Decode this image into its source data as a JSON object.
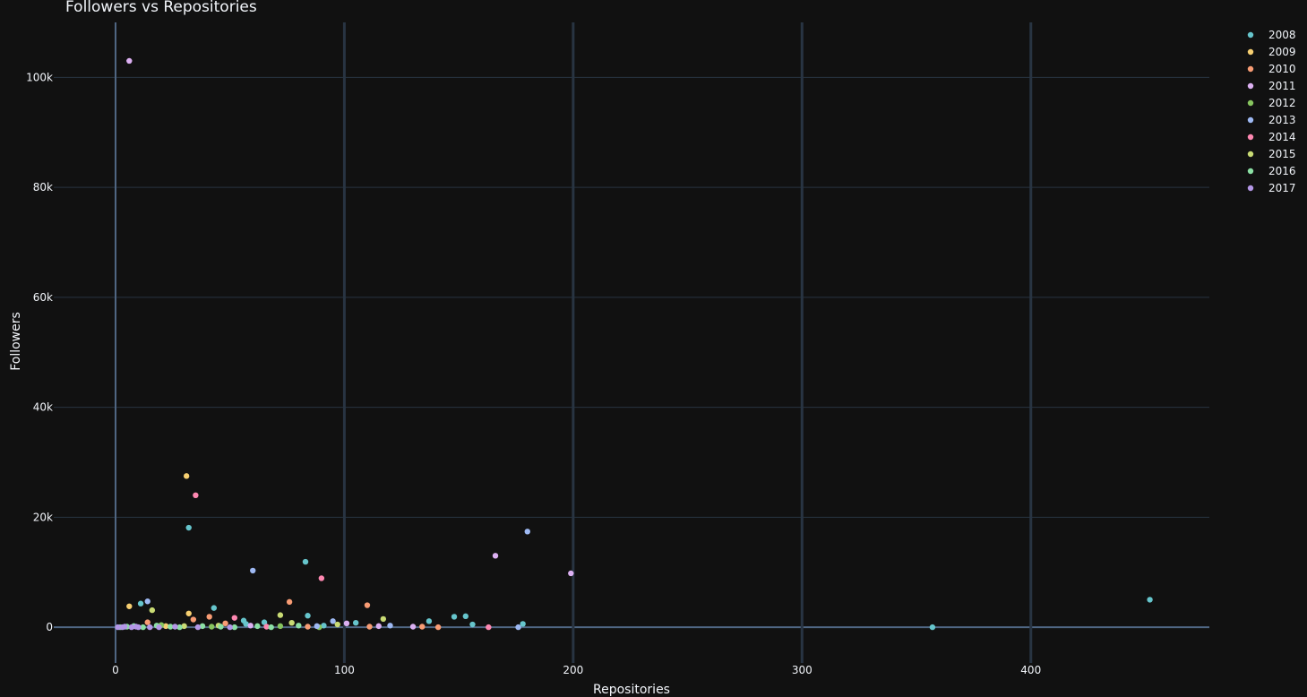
{
  "chart_data": {
    "type": "scatter",
    "title": "Followers vs Repositories",
    "xlabel": "Repositories",
    "ylabel": "Followers",
    "xlim": [
      -27,
      478
    ],
    "ylim": [
      -6500,
      110000
    ],
    "x_ticks": [
      0,
      100,
      200,
      300,
      400
    ],
    "x_tick_labels": [
      "0",
      "100",
      "200",
      "300",
      "400"
    ],
    "y_ticks": [
      0,
      20000,
      40000,
      60000,
      80000,
      100000
    ],
    "y_tick_labels": [
      "0",
      "20k",
      "40k",
      "60k",
      "80k",
      "100k"
    ],
    "grid": true,
    "legend_position": "top-right",
    "background": "#111111",
    "grid_color": "#283442",
    "series": [
      {
        "name": "2008",
        "color": "#66c5cc",
        "points": [
          [
            11,
            4300
          ],
          [
            32,
            18100
          ],
          [
            43,
            3500
          ],
          [
            56,
            1200
          ],
          [
            57,
            600
          ],
          [
            65,
            900
          ],
          [
            83,
            11900
          ],
          [
            84,
            2100
          ],
          [
            91,
            300
          ],
          [
            105,
            800
          ],
          [
            137,
            1100
          ],
          [
            148,
            1900
          ],
          [
            153,
            2000
          ],
          [
            156,
            500
          ],
          [
            178,
            600
          ],
          [
            357,
            0
          ],
          [
            452,
            5000
          ]
        ]
      },
      {
        "name": "2009",
        "color": "#f6cf71",
        "points": [
          [
            6,
            3800
          ],
          [
            31,
            27500
          ],
          [
            32,
            2500
          ],
          [
            22,
            200
          ]
        ]
      },
      {
        "name": "2010",
        "color": "#f89c74",
        "points": [
          [
            14,
            900
          ],
          [
            34,
            1400
          ],
          [
            41,
            1900
          ],
          [
            48,
            700
          ],
          [
            76,
            4600
          ],
          [
            84,
            100
          ],
          [
            110,
            4000
          ],
          [
            111,
            100
          ],
          [
            134,
            100
          ],
          [
            141,
            0
          ]
        ]
      },
      {
        "name": "2011",
        "color": "#dcb0f2",
        "points": [
          [
            6,
            103000
          ],
          [
            59,
            300
          ],
          [
            101,
            700
          ],
          [
            115,
            200
          ],
          [
            130,
            100
          ],
          [
            166,
            13000
          ],
          [
            199,
            9800
          ]
        ]
      },
      {
        "name": "2012",
        "color": "#87c55f",
        "points": [
          [
            20,
            400
          ],
          [
            42,
            100
          ],
          [
            72,
            200
          ],
          [
            89,
            0
          ]
        ]
      },
      {
        "name": "2013",
        "color": "#9eb9f3",
        "points": [
          [
            14,
            4700
          ],
          [
            60,
            10300
          ],
          [
            88,
            200
          ],
          [
            95,
            1100
          ],
          [
            120,
            300
          ],
          [
            176,
            0
          ],
          [
            180,
            17400
          ]
        ]
      },
      {
        "name": "2014",
        "color": "#fe88b1",
        "points": [
          [
            35,
            24000
          ],
          [
            52,
            1700
          ],
          [
            90,
            8900
          ],
          [
            163,
            0
          ],
          [
            66,
            100
          ]
        ]
      },
      {
        "name": "2015",
        "color": "#c9db74",
        "points": [
          [
            16,
            3100
          ],
          [
            30,
            200
          ],
          [
            72,
            2200
          ],
          [
            77,
            800
          ],
          [
            97,
            500
          ],
          [
            117,
            1500
          ],
          [
            45,
            300
          ]
        ]
      },
      {
        "name": "2016",
        "color": "#8be0a4",
        "points": [
          [
            2,
            0
          ],
          [
            5,
            100
          ],
          [
            8,
            200
          ],
          [
            12,
            0
          ],
          [
            18,
            300
          ],
          [
            24,
            100
          ],
          [
            28,
            0
          ],
          [
            38,
            200
          ],
          [
            46,
            100
          ],
          [
            52,
            0
          ],
          [
            62,
            200
          ],
          [
            68,
            0
          ],
          [
            80,
            300
          ]
        ]
      },
      {
        "name": "2017",
        "color": "#b497e7",
        "points": [
          [
            1,
            0
          ],
          [
            3,
            0
          ],
          [
            4,
            100
          ],
          [
            7,
            0
          ],
          [
            9,
            100
          ],
          [
            10,
            0
          ],
          [
            15,
            0
          ],
          [
            19,
            0
          ],
          [
            26,
            100
          ],
          [
            36,
            0
          ],
          [
            50,
            0
          ]
        ]
      }
    ]
  }
}
